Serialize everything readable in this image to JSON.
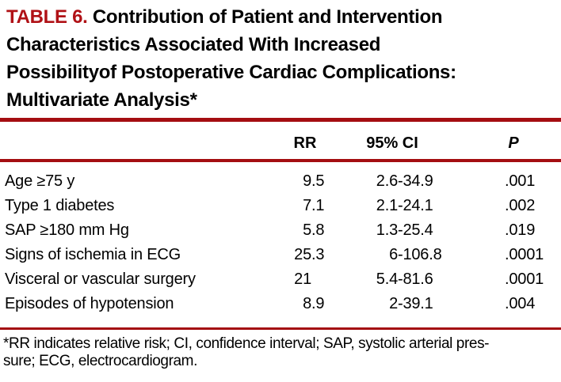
{
  "title": {
    "label": "TABLE 6.",
    "lines": [
      "Contribution of Patient and Intervention",
      "Characteristics Associated With Increased",
      "Possibilityof Postoperative Cardiac Complications:",
      "Multivariate Analysis*"
    ]
  },
  "table": {
    "header": {
      "rr": "RR",
      "ci": "95% CI",
      "p": "P"
    },
    "rows": [
      {
        "label": "Age ≥75 y",
        "rr": "9.5",
        "ci": "2.6-34.9",
        "p": ".001"
      },
      {
        "label": "Type 1 diabetes",
        "rr": "7.1",
        "ci": "2.1-24.1",
        "p": ".002"
      },
      {
        "label": "SAP ≥180 mm Hg",
        "rr": "5.8",
        "ci": "1.3-25.4",
        "p": ".019"
      },
      {
        "label": "Signs of ischemia in ECG",
        "rr": "25.3",
        "ci": "6-106.8",
        "p": ".0001"
      },
      {
        "label": "Visceral or vascular surgery",
        "rr": "21",
        "ci": "5.4-81.6",
        "p": ".0001"
      },
      {
        "label": "Episodes of hypotension",
        "rr": "8.9",
        "ci": "2-39.1",
        "p": ".004"
      }
    ]
  },
  "footnote": {
    "lines": [
      "*RR indicates relative risk; CI, confidence interval; SAP, systolic arterial pres-",
      "sure; ECG, electrocardiogram."
    ]
  },
  "colors": {
    "accent_red": "#B01116",
    "rule_red": "#A40D11",
    "text": "#000000",
    "background": "#FFFFFF"
  }
}
